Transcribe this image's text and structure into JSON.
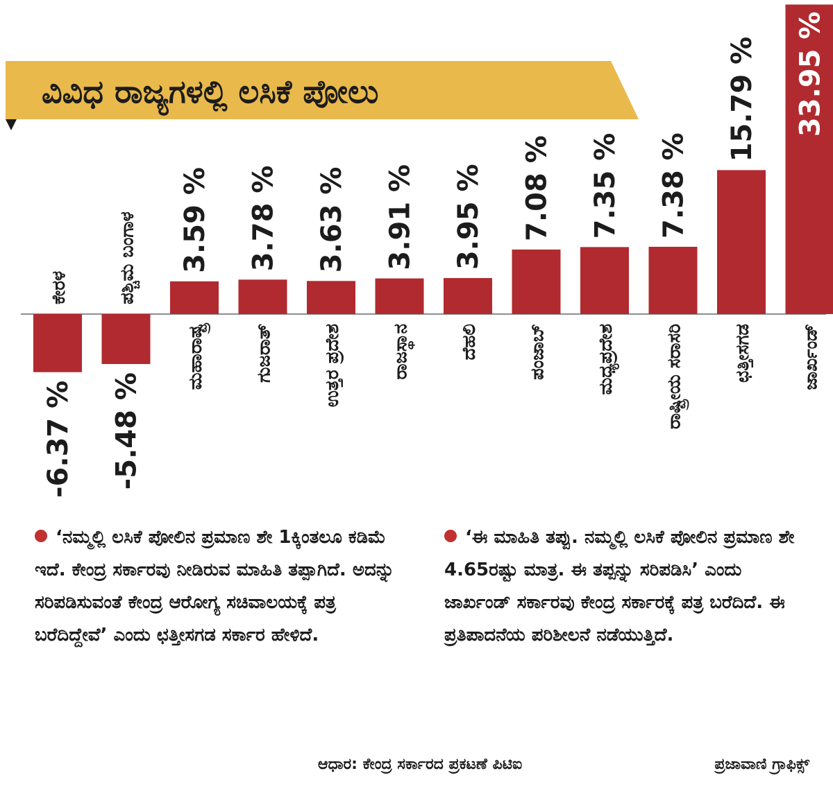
{
  "title": "ವಿವಿಧ ರಾಜ್ಯಗಳಲ್ಲಿ ಲಸಿಕೆ ಪೋಲು",
  "colors": {
    "bar": "#b02a2f",
    "banner": "#e9b94b",
    "dot": "#c0312f",
    "text": "#1c1c1c"
  },
  "chart_data": {
    "type": "bar",
    "title": "ವಿವಿಧ ರಾಜ್ಯಗಳಲ್ಲಿ ಲಸಿಕೆ ಪೋಲು",
    "categories": [
      "ಕೇರಳ",
      "ಪಶ್ಚಿಮ ಬಂಗಾಳ",
      "ಮಹಾರಾಷ್ಟ್ರ",
      "ಗುಜರಾತ್",
      "ಉತ್ತರ ಪ್ರದೇಶ",
      "ರಾಜಸ್ಥಾನ",
      "ದೆಹಲಿ",
      "ಪಂಜಾಬ್",
      "ಮಧ್ಯಪ್ರದೇಶ",
      "ರಾಷ್ಟ್ರೀಯ ಸರಾಸರಿ",
      "ಛತ್ತೀಸಗಡ",
      "ಜಾರ್ಖಂಡ್"
    ],
    "values": [
      -6.37,
      -5.48,
      3.59,
      3.78,
      3.63,
      3.91,
      3.95,
      7.08,
      7.35,
      7.38,
      15.79,
      33.95
    ],
    "value_labels": [
      "-6.37 %",
      "-5.48 %",
      "3.59 %",
      "3.78 %",
      "3.63 %",
      "3.91 %",
      "3.95 %",
      "7.08 %",
      "7.35 %",
      "7.38 %",
      "15.79 %",
      "33.95 %"
    ],
    "unit": "%",
    "xlabel": "",
    "ylabel": "",
    "grid": false,
    "legend": "none"
  },
  "notes": [
    "‘ನಮ್ಮಲ್ಲಿ ಲಸಿಕೆ ಪೋಲಿನ ಪ್ರಮಾಣ ಶೇ 1ಕ್ಕಿಂತಲೂ ಕಡಿಮೆ ಇದೆ. ಕೇಂದ್ರ ಸರ್ಕಾರವು ನೀಡಿರುವ ಮಾಹಿತಿ ತಪ್ಪಾಗಿದೆ. ಅದನ್ನು ಸರಿಪಡಿಸುವಂತೆ ಕೇಂದ್ರ ಆರೋಗ್ಯ ಸಚಿವಾಲಯಕ್ಕೆ ಪತ್ರ ಬರೆದಿದ್ದೇವೆ’ ಎಂದು ಛತ್ತೀಸಗಡ ಸರ್ಕಾರ ಹೇಳಿದೆ.",
    "‘ಈ ಮಾಹಿತಿ ತಪ್ಪು. ನಮ್ಮಲ್ಲಿ ಲಸಿಕೆ ಪೋಲಿನ ಪ್ರಮಾಣ ಶೇ 4.65ರಷ್ಟು ಮಾತ್ರ. ಈ ತಪ್ಪನ್ನು ಸರಿಪಡಿಸಿ’ ಎಂದು ಜಾರ್ಖಂಡ್ ಸರ್ಕಾರವು ಕೇಂದ್ರ ಸರ್ಕಾರಕ್ಕೆ ಪತ್ರ ಬರೆದಿದೆ. ಈ ಪ್ರತಿಪಾದನೆಯ ಪರಿಶೀಲನೆ ನಡೆಯುತ್ತಿದೆ."
  ],
  "footer": {
    "source": "ಆಧಾರ: ಕೇಂದ್ರ ಸರ್ಕಾರದ ಪ್ರಕಟಣೆ ಪಿಟಿಐ",
    "credit": "ಪ್ರಜಾವಾಣಿ ಗ್ರಾಫಿಕ್ಸ್"
  }
}
